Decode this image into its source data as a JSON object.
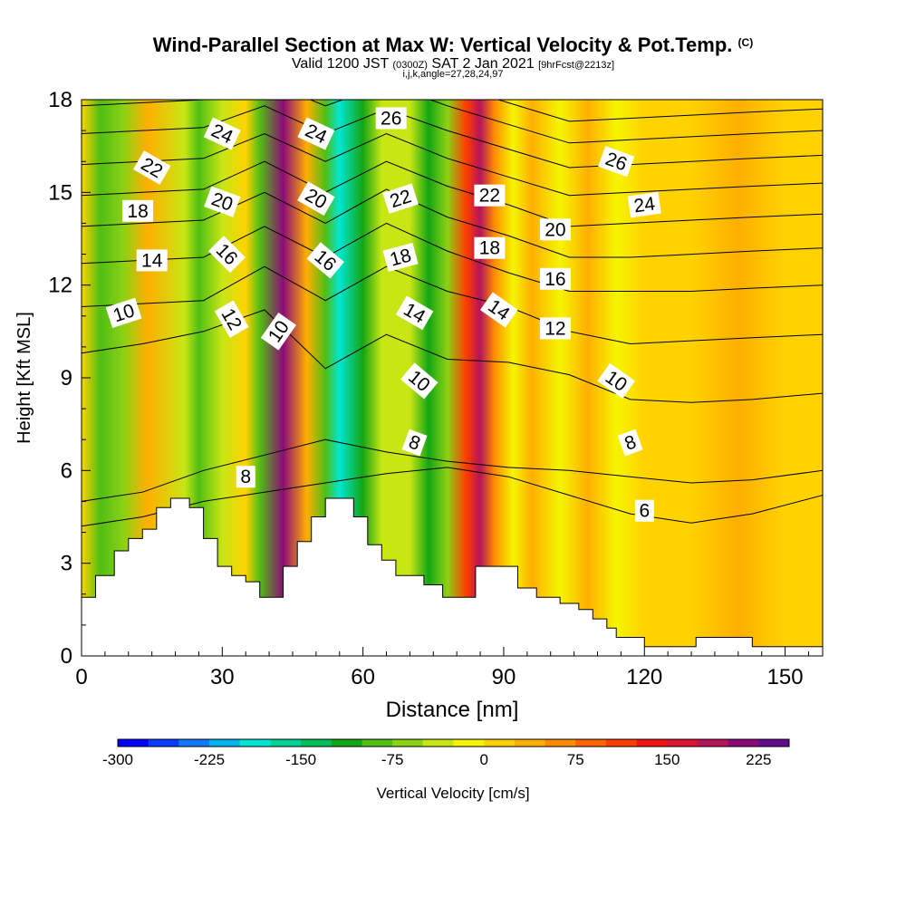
{
  "header": {
    "title_main": "Wind-Parallel Section at Max W: Vertical Velocity & Pot.Temp.",
    "title_tag": "(C)",
    "valid_prefix": "Valid 1200 JST",
    "valid_utc": "(0300Z)",
    "valid_date": "SAT 2 Jan 2021",
    "valid_fcst": "[9hrFcst@2213z]",
    "index_line": "i,j,k,angle=27,28,24,97"
  },
  "colors": {
    "ramp": [
      "#0000ff",
      "#0a3cff",
      "#1478ff",
      "#00b4f0",
      "#00e6d2",
      "#00d296",
      "#00be5a",
      "#14a514",
      "#50be14",
      "#8cd214",
      "#c8e614",
      "#f5f500",
      "#ffd200",
      "#ffaf00",
      "#ff8c00",
      "#ff6400",
      "#ff3c00",
      "#f51414",
      "#dc1432",
      "#b4145a",
      "#8c0a78",
      "#640a8c"
    ],
    "contour": "#000000",
    "terrain": "#ffffff",
    "background": "#ffffff"
  },
  "chart_data": {
    "type": "heatmap",
    "xlabel": "Distance [nm]",
    "ylabel": "Height [Kft MSL]",
    "xlim": [
      0,
      158
    ],
    "ylim": [
      0,
      18
    ],
    "x_ticks": [
      "0",
      "30",
      "60",
      "90",
      "120",
      "150"
    ],
    "y_ticks": [
      "0",
      "3",
      "6",
      "9",
      "12",
      "15",
      "18"
    ],
    "colorbar": {
      "label": "Vertical Velocity [cm/s]",
      "range": [
        -300,
        250
      ],
      "ticks": [
        "-300",
        "-225",
        "-150",
        "-75",
        "0",
        "75",
        "150",
        "225"
      ]
    },
    "w_field_cm_s": [
      {
        "x": 0,
        "w": 20
      },
      {
        "x": 4,
        "w": -90
      },
      {
        "x": 9,
        "w": -60
      },
      {
        "x": 14,
        "w": 35
      },
      {
        "x": 22,
        "w": -40
      },
      {
        "x": 25,
        "w": -100
      },
      {
        "x": 30,
        "w": -40
      },
      {
        "x": 35,
        "w": 20
      },
      {
        "x": 38,
        "w": -80
      },
      {
        "x": 43,
        "w": 200
      },
      {
        "x": 48,
        "w": 30
      },
      {
        "x": 52,
        "w": -80
      },
      {
        "x": 55,
        "w": -200
      },
      {
        "x": 60,
        "w": -120
      },
      {
        "x": 64,
        "w": -40
      },
      {
        "x": 70,
        "w": -30
      },
      {
        "x": 74,
        "w": -110
      },
      {
        "x": 78,
        "w": -60
      },
      {
        "x": 82,
        "w": 120
      },
      {
        "x": 85,
        "w": 180
      },
      {
        "x": 88,
        "w": 50
      },
      {
        "x": 92,
        "w": -20
      },
      {
        "x": 96,
        "w": 40
      },
      {
        "x": 102,
        "w": -20
      },
      {
        "x": 108,
        "w": 30
      },
      {
        "x": 114,
        "w": -10
      },
      {
        "x": 120,
        "w": 20
      },
      {
        "x": 130,
        "w": 0
      },
      {
        "x": 140,
        "w": 25
      },
      {
        "x": 150,
        "w": 0
      },
      {
        "x": 158,
        "w": 10
      }
    ],
    "theta_contours": [
      {
        "label": "6",
        "y": [
          4.2,
          4.5,
          5.0,
          5.3,
          5.6,
          5.9,
          6.1,
          5.8,
          5.2,
          4.6,
          4.3,
          4.6,
          5.2
        ]
      },
      {
        "label": "8",
        "y": [
          5.0,
          5.3,
          6.0,
          6.5,
          7.0,
          6.6,
          6.3,
          6.1,
          6.0,
          5.8,
          5.6,
          5.7,
          6.0
        ]
      },
      {
        "label": "10",
        "y": [
          9.8,
          10.1,
          10.5,
          11.2,
          9.3,
          10.4,
          9.6,
          9.5,
          9.1,
          8.3,
          8.2,
          8.3,
          8.5
        ]
      },
      {
        "label": "12",
        "y": [
          11.3,
          11.4,
          11.5,
          12.6,
          11.5,
          12.6,
          11.8,
          11.3,
          10.5,
          10.1,
          10.2,
          10.3,
          10.4
        ]
      },
      {
        "label": "14",
        "y": [
          12.7,
          12.8,
          12.9,
          13.9,
          12.9,
          14.0,
          13.1,
          12.4,
          11.8,
          11.8,
          11.8,
          11.9,
          12.0
        ]
      },
      {
        "label": "16",
        "y": [
          13.9,
          14.0,
          14.1,
          15.0,
          14.0,
          15.1,
          14.2,
          13.6,
          12.9,
          12.9,
          13.0,
          13.1,
          13.2
        ]
      },
      {
        "label": "18",
        "y": [
          14.9,
          15.0,
          15.1,
          16.0,
          15.0,
          16.0,
          15.2,
          14.6,
          13.9,
          14.0,
          14.1,
          14.2,
          14.3
        ]
      },
      {
        "label": "20",
        "y": [
          15.9,
          16.0,
          16.1,
          16.9,
          16.0,
          16.9,
          16.1,
          15.5,
          14.9,
          15.0,
          15.1,
          15.2,
          15.3
        ]
      },
      {
        "label": "22",
        "y": [
          16.9,
          17.0,
          17.1,
          17.8,
          16.9,
          17.7,
          17.0,
          16.4,
          15.8,
          15.9,
          16.0,
          16.1,
          16.2
        ]
      },
      {
        "label": "24",
        "y": [
          17.8,
          17.9,
          18.0,
          18.6,
          17.8,
          18.5,
          17.8,
          17.2,
          16.6,
          16.7,
          16.8,
          16.9,
          17.0
        ]
      },
      {
        "label": "26",
        "y": [
          18.6,
          18.7,
          18.8,
          19.3,
          18.6,
          19.2,
          18.5,
          17.9,
          17.3,
          17.4,
          17.5,
          17.6,
          17.7
        ]
      }
    ],
    "contour_x": [
      0,
      13,
      26,
      39,
      52,
      65,
      78,
      91,
      104,
      117,
      130,
      143,
      158
    ],
    "contour_labels": [
      {
        "text": "22",
        "x": 15,
        "y": 15.8,
        "angle": 30
      },
      {
        "text": "18",
        "x": 12,
        "y": 14.4,
        "angle": 0
      },
      {
        "text": "14",
        "x": 15,
        "y": 12.8,
        "angle": 0
      },
      {
        "text": "10",
        "x": 9,
        "y": 11.1,
        "angle": -18
      },
      {
        "text": "24",
        "x": 30,
        "y": 16.9,
        "angle": 25
      },
      {
        "text": "20",
        "x": 30,
        "y": 14.7,
        "angle": 20
      },
      {
        "text": "16",
        "x": 31,
        "y": 13.0,
        "angle": 45
      },
      {
        "text": "12",
        "x": 32,
        "y": 10.9,
        "angle": 60
      },
      {
        "text": "8",
        "x": 35,
        "y": 5.8,
        "angle": 0
      },
      {
        "text": "10",
        "x": 42,
        "y": 10.5,
        "angle": -55
      },
      {
        "text": "24",
        "x": 50,
        "y": 16.9,
        "angle": 25
      },
      {
        "text": "20",
        "x": 50,
        "y": 14.8,
        "angle": 30
      },
      {
        "text": "16",
        "x": 52,
        "y": 12.8,
        "angle": 40
      },
      {
        "text": "26",
        "x": 66,
        "y": 17.4,
        "angle": 0
      },
      {
        "text": "22",
        "x": 68,
        "y": 14.8,
        "angle": -18
      },
      {
        "text": "18",
        "x": 68,
        "y": 12.9,
        "angle": -15
      },
      {
        "text": "14",
        "x": 71,
        "y": 11.1,
        "angle": 30
      },
      {
        "text": "10",
        "x": 72,
        "y": 8.9,
        "angle": 40
      },
      {
        "text": "8",
        "x": 71,
        "y": 6.9,
        "angle": 20
      },
      {
        "text": "22",
        "x": 87,
        "y": 14.9,
        "angle": 0
      },
      {
        "text": "18",
        "x": 87,
        "y": 13.2,
        "angle": 0
      },
      {
        "text": "14",
        "x": 89,
        "y": 11.2,
        "angle": 35
      },
      {
        "text": "20",
        "x": 101,
        "y": 13.8,
        "angle": 0
      },
      {
        "text": "16",
        "x": 101,
        "y": 12.2,
        "angle": 0
      },
      {
        "text": "12",
        "x": 101,
        "y": 10.6,
        "angle": 0
      },
      {
        "text": "26",
        "x": 114,
        "y": 16.0,
        "angle": 20
      },
      {
        "text": "24",
        "x": 120,
        "y": 14.6,
        "angle": -8
      },
      {
        "text": "10",
        "x": 114,
        "y": 8.9,
        "angle": 35
      },
      {
        "text": "8",
        "x": 117,
        "y": 6.9,
        "angle": -20
      },
      {
        "text": "6",
        "x": 120,
        "y": 4.7,
        "angle": 0
      }
    ],
    "terrain_kft": [
      [
        0,
        1.9
      ],
      [
        3,
        2.6
      ],
      [
        7,
        3.4
      ],
      [
        10,
        3.8
      ],
      [
        13,
        4.1
      ],
      [
        16,
        4.8
      ],
      [
        19,
        5.1
      ],
      [
        23,
        4.8
      ],
      [
        26,
        3.8
      ],
      [
        29,
        2.9
      ],
      [
        32,
        2.6
      ],
      [
        35,
        2.4
      ],
      [
        38,
        1.9
      ],
      [
        43,
        2.9
      ],
      [
        46,
        3.7
      ],
      [
        49,
        4.5
      ],
      [
        52,
        5.1
      ],
      [
        58,
        4.5
      ],
      [
        61,
        3.6
      ],
      [
        64,
        3.1
      ],
      [
        67,
        2.6
      ],
      [
        73,
        2.3
      ],
      [
        77,
        1.9
      ],
      [
        84,
        2.9
      ],
      [
        93,
        2.2
      ],
      [
        97,
        1.9
      ],
      [
        102,
        1.7
      ],
      [
        106,
        1.5
      ],
      [
        109,
        1.2
      ],
      [
        112,
        0.9
      ],
      [
        114,
        0.6
      ],
      [
        120,
        0.3
      ],
      [
        131,
        0.6
      ],
      [
        143,
        0.3
      ],
      [
        158,
        0.3
      ]
    ]
  }
}
